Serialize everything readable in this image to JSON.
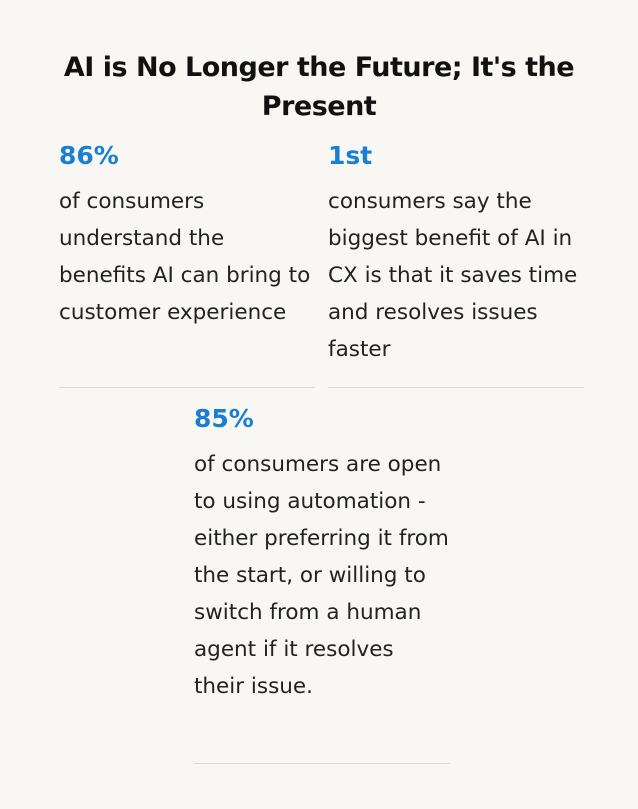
{
  "title": "AI is No Longer the Future; It's the Present",
  "stats": [
    {
      "value": "86%",
      "description": "of consumers understand the benefits AI can bring to customer experience",
      "value_color": "#1a7fd4"
    },
    {
      "value": "1st",
      "description": "consumers say the biggest benefit of AI in CX is that it saves time and resolves issues faster",
      "value_color": "#1a7fd4"
    },
    {
      "value": "85%",
      "description": "of consumers are open to using automation - either preferring it from the start, or willing to switch from a human agent if it resolves their issue.",
      "value_color": "#1a7fd4"
    }
  ]
}
